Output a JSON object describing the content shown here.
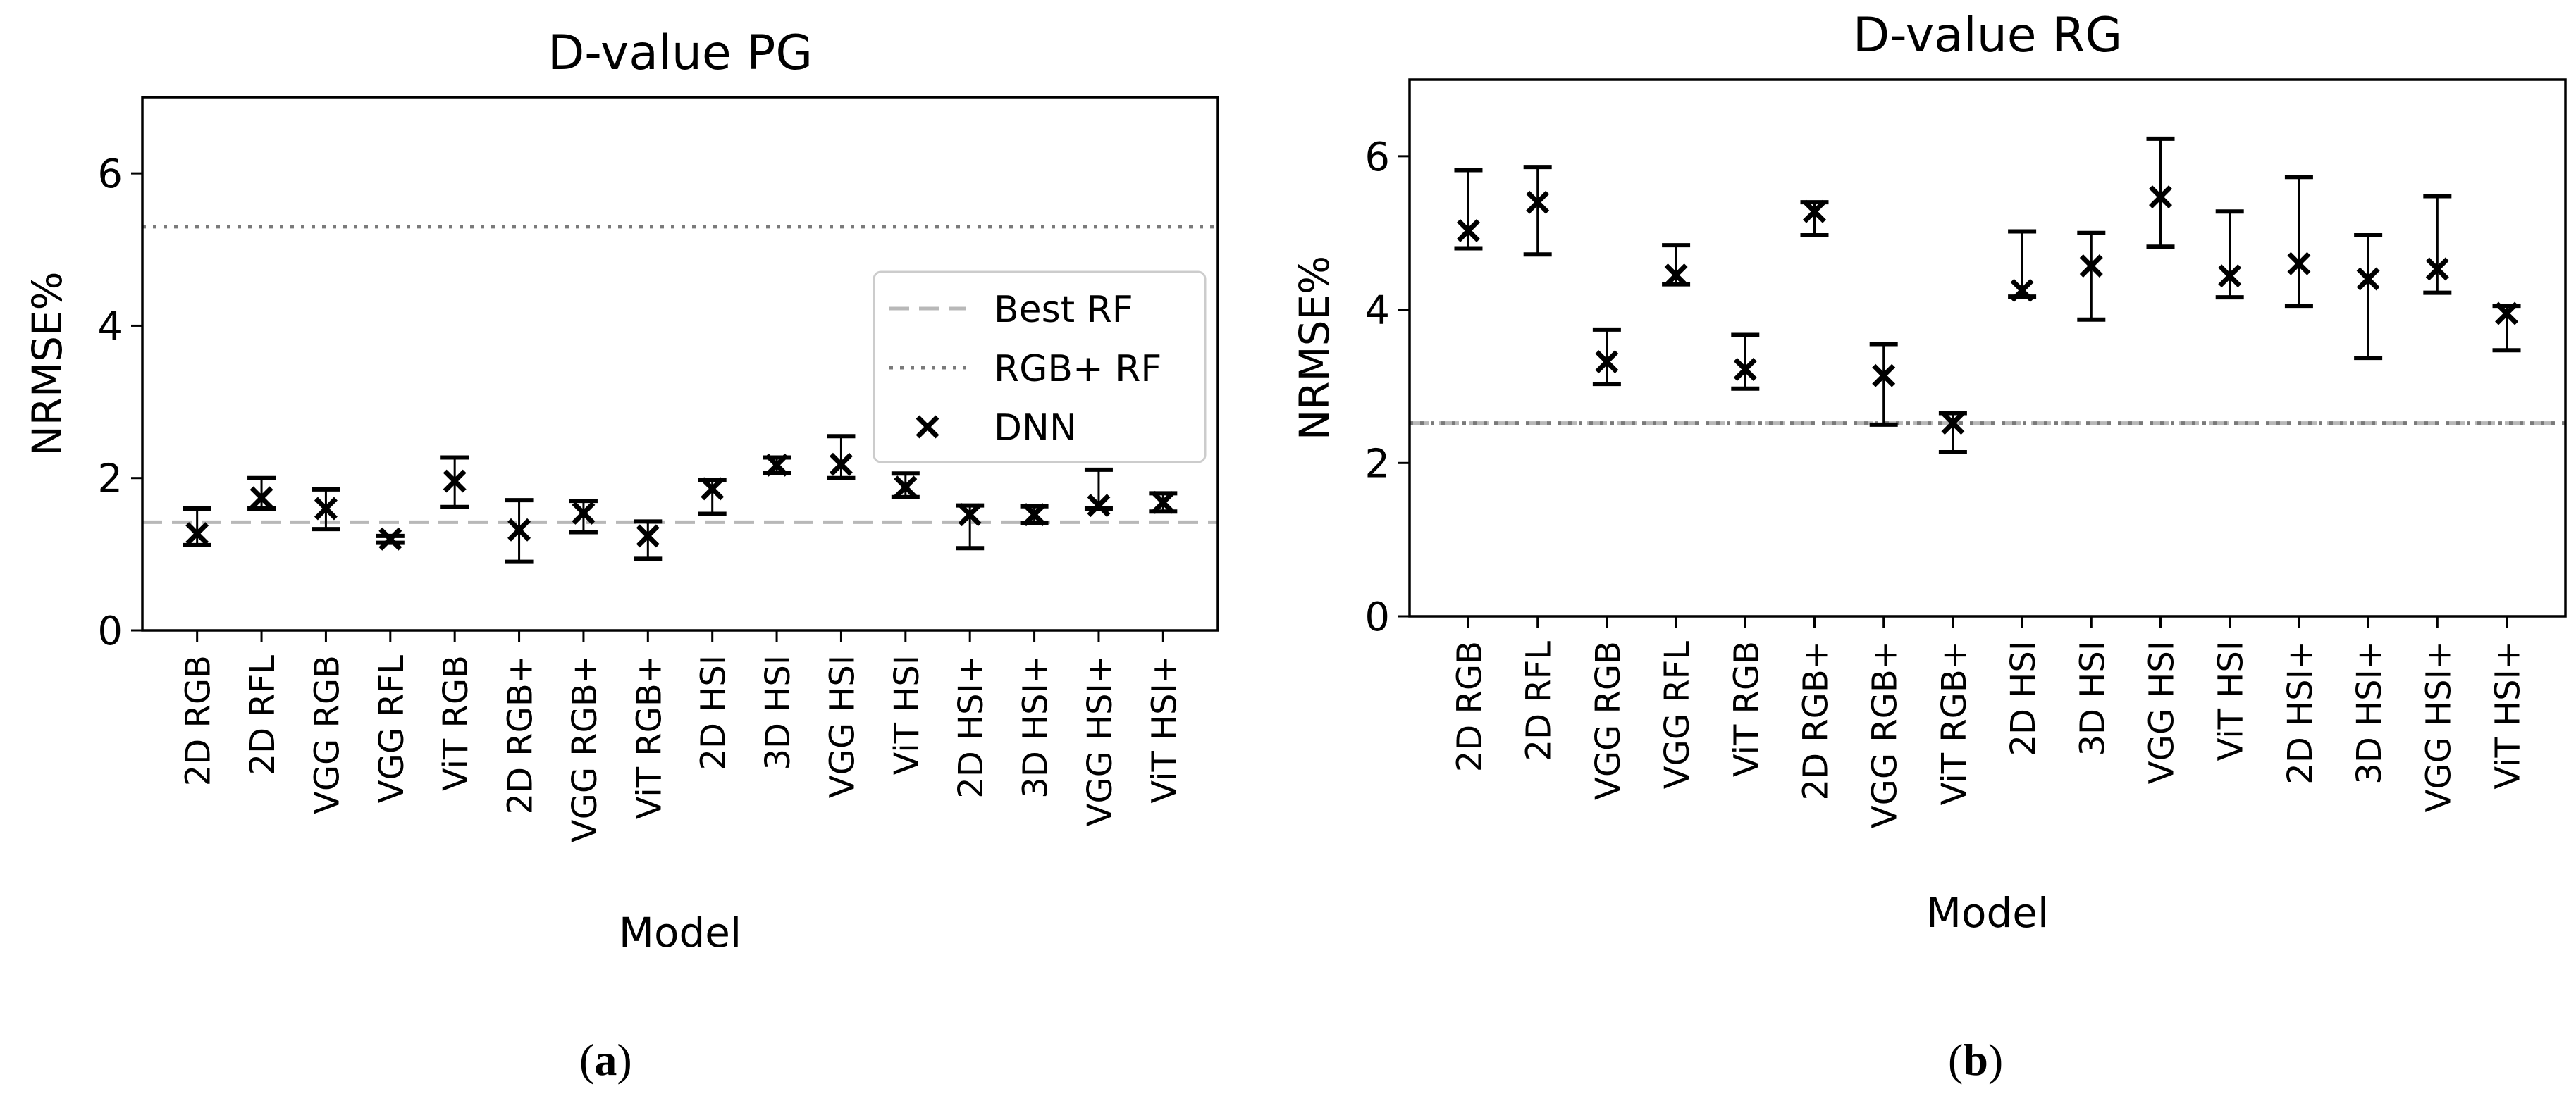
{
  "panels": [
    {
      "caption_letter": "a",
      "chart_data": {
        "type": "scatter",
        "title": "D-value PG",
        "xlabel": "Model",
        "ylabel": "NRMSE%",
        "ylim": [
          0,
          7
        ],
        "yticks": [
          0,
          2,
          4,
          6
        ],
        "categories": [
          "2D RGB",
          "2D RFL",
          "VGG RGB",
          "VGG RFL",
          "ViT RGB",
          "2D RGB+",
          "VGG RGB+",
          "ViT RGB+",
          "2D HSI",
          "3D HSI",
          "VGG HSI",
          "ViT HSI",
          "2D HSI+",
          "3D HSI+",
          "VGG HSI+",
          "ViT HSI+"
        ],
        "series": [
          {
            "name": "DNN",
            "marker": "x",
            "values": [
              1.27,
              1.74,
              1.6,
              1.2,
              1.96,
              1.32,
              1.54,
              1.24,
              1.86,
              2.17,
              2.18,
              1.88,
              1.52,
              1.52,
              1.64,
              1.68
            ],
            "err_low": [
              1.12,
              1.6,
              1.33,
              1.15,
              1.62,
              0.9,
              1.29,
              0.94,
              1.53,
              2.07,
              2.0,
              1.75,
              1.08,
              1.41,
              1.6,
              1.56
            ],
            "err_high": [
              1.6,
              2.0,
              1.85,
              1.24,
              2.27,
              1.71,
              1.7,
              1.43,
              1.97,
              2.27,
              2.55,
              2.06,
              1.64,
              1.63,
              2.11,
              1.8
            ]
          }
        ],
        "reference_lines": [
          {
            "name": "Best RF",
            "value": 1.42,
            "style": "dashed",
            "color": "#b8b8b8"
          },
          {
            "name": "RGB+ RF",
            "value": 5.3,
            "style": "dotted",
            "color": "#7a7a7a"
          }
        ],
        "legend": {
          "position": "center-right",
          "entries": [
            "Best RF",
            "RGB+ RF",
            "DNN"
          ]
        }
      }
    },
    {
      "caption_letter": "b",
      "chart_data": {
        "type": "scatter",
        "title": "D-value RG",
        "xlabel": "Model",
        "ylabel": "NRMSE%",
        "ylim": [
          0,
          7
        ],
        "yticks": [
          0,
          2,
          4,
          6
        ],
        "categories": [
          "2D RGB",
          "2D RFL",
          "VGG RGB",
          "VGG RFL",
          "ViT RGB",
          "2D RGB+",
          "VGG RGB+",
          "ViT RGB+",
          "2D HSI",
          "3D HSI",
          "VGG HSI",
          "ViT HSI",
          "2D HSI+",
          "3D HSI+",
          "VGG HSI+",
          "ViT HSI+"
        ],
        "series": [
          {
            "name": "DNN",
            "marker": "x",
            "values": [
              5.03,
              5.4,
              3.32,
              4.45,
              3.22,
              5.28,
              3.14,
              2.52,
              4.25,
              4.57,
              5.47,
              4.44,
              4.6,
              4.4,
              4.53,
              3.95
            ],
            "err_low": [
              4.8,
              4.72,
              3.03,
              4.33,
              2.97,
              4.97,
              2.5,
              2.14,
              4.17,
              3.87,
              4.82,
              4.16,
              4.05,
              3.37,
              4.22,
              3.47
            ],
            "err_high": [
              5.82,
              5.86,
              3.74,
              4.84,
              3.67,
              5.4,
              3.55,
              2.65,
              5.02,
              5.0,
              6.23,
              5.28,
              5.73,
              4.97,
              5.48,
              4.05
            ]
          }
        ],
        "reference_lines": [
          {
            "name": "Best RF",
            "value": 2.52,
            "style": "dashed",
            "color": "#b8b8b8"
          },
          {
            "name": "RGB+ RF",
            "value": 2.52,
            "style": "dotted",
            "color": "#7a7a7a"
          }
        ],
        "legend": null
      }
    }
  ]
}
